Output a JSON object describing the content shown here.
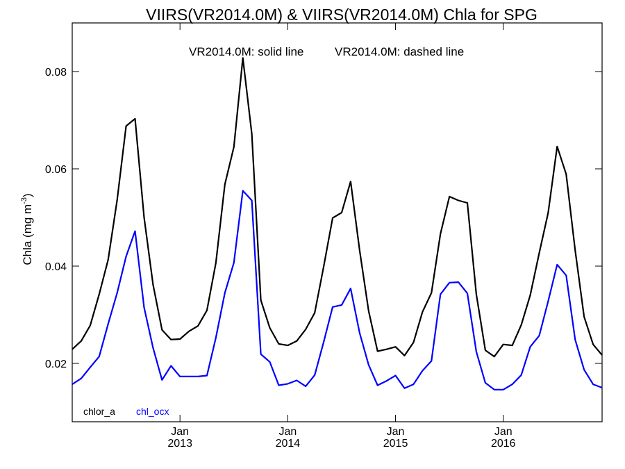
{
  "chart_data": {
    "type": "line",
    "title": "VIIRS(VR2014.0M) & VIIRS(VR2014.0M)  Chla for SPG",
    "annotation_solid": "VR2014.0M: solid line",
    "annotation_dashed": "VR2014.0M: dashed line",
    "ylabel_main": "Chla (mg m",
    "ylabel_sup": "-3",
    "ylabel_close": ")",
    "ylim": [
      0.008,
      0.09
    ],
    "xlim_months": [
      0,
      59
    ],
    "x_start": "2012-01",
    "y_ticks": [
      {
        "value": 0.02,
        "label": "0.02"
      },
      {
        "value": 0.04,
        "label": "0.04"
      },
      {
        "value": 0.06,
        "label": "0.06"
      },
      {
        "value": 0.08,
        "label": "0.08"
      }
    ],
    "x_ticks": [
      {
        "month_index": 12,
        "month": "Jan",
        "year": "2013"
      },
      {
        "month_index": 24,
        "month": "Jan",
        "year": "2014"
      },
      {
        "month_index": 36,
        "month": "Jan",
        "year": "2015"
      },
      {
        "month_index": 48,
        "month": "Jan",
        "year": "2016"
      }
    ],
    "legend_placement": "bottom-left",
    "series": [
      {
        "name": "chlor_a",
        "color": "#000000",
        "values": [
          0.0229,
          0.0246,
          0.0278,
          0.0342,
          0.0413,
          0.0536,
          0.0688,
          0.0703,
          0.05,
          0.0362,
          0.0269,
          0.0249,
          0.025,
          0.0266,
          0.0277,
          0.0309,
          0.0407,
          0.0568,
          0.0645,
          0.0828,
          0.0672,
          0.033,
          0.0273,
          0.024,
          0.0237,
          0.0246,
          0.027,
          0.0304,
          0.0399,
          0.0499,
          0.051,
          0.0574,
          0.0433,
          0.0308,
          0.0225,
          0.0229,
          0.0234,
          0.0216,
          0.0243,
          0.0306,
          0.0345,
          0.0466,
          0.0543,
          0.0535,
          0.053,
          0.0342,
          0.0227,
          0.0214,
          0.0239,
          0.0237,
          0.0279,
          0.034,
          0.0427,
          0.051,
          0.0646,
          0.0589,
          0.0433,
          0.0296,
          0.0239,
          0.0217
        ]
      },
      {
        "name": "chl_ocx",
        "color": "#0000ff",
        "values": [
          0.0157,
          0.0169,
          0.0192,
          0.0214,
          0.0281,
          0.0345,
          0.042,
          0.0472,
          0.0315,
          0.0232,
          0.0166,
          0.0195,
          0.0173,
          0.0173,
          0.0173,
          0.0175,
          0.0253,
          0.0345,
          0.0407,
          0.0555,
          0.0535,
          0.0219,
          0.0203,
          0.0155,
          0.0158,
          0.0165,
          0.0153,
          0.0176,
          0.0244,
          0.0316,
          0.032,
          0.0354,
          0.0263,
          0.0197,
          0.0155,
          0.0164,
          0.0175,
          0.0149,
          0.0157,
          0.0185,
          0.0205,
          0.0342,
          0.0366,
          0.0367,
          0.0344,
          0.0224,
          0.016,
          0.0146,
          0.0146,
          0.0157,
          0.0176,
          0.0234,
          0.0257,
          0.0328,
          0.0403,
          0.0381,
          0.0249,
          0.0187,
          0.0157,
          0.015
        ]
      }
    ]
  }
}
